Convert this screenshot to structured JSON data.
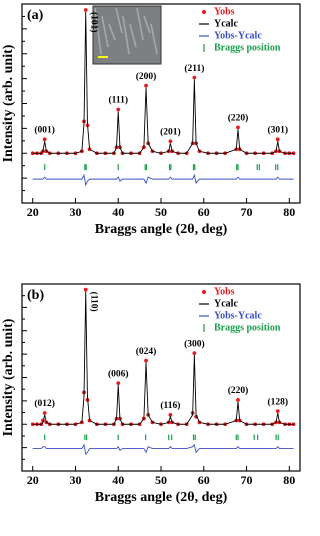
{
  "chart_data": [
    {
      "type": "line",
      "panel": "(a)",
      "xlabel": "Braggs angle (2θ, deg)",
      "ylabel": "Intensity (arb. unit)",
      "xlim": [
        17.5,
        82.5
      ],
      "xticks": [
        20,
        30,
        40,
        50,
        60,
        70,
        80
      ],
      "ylim": [
        0,
        100
      ],
      "x": [
        20,
        21,
        22,
        22.4,
        22.8,
        23.2,
        24,
        26,
        28,
        30,
        31.5,
        32,
        32.4,
        32.8,
        33.3,
        35,
        37,
        39,
        39.6,
        40,
        40.4,
        41,
        43,
        45,
        46,
        46.5,
        47,
        48,
        50,
        51.8,
        52.2,
        52.6,
        54,
        56,
        57.4,
        57.8,
        58.2,
        59,
        61,
        63,
        65,
        67.6,
        68,
        68.4,
        70,
        72,
        74,
        76,
        76.9,
        77.3,
        77.7,
        79,
        80,
        81
      ],
      "series": [
        {
          "name": "Yobs",
          "color": "#e8191f",
          "style": "markers",
          "values": [
            25,
            25,
            25,
            26,
            32,
            26,
            25,
            25,
            25,
            25,
            26,
            41,
            97,
            39,
            27,
            25,
            25,
            25,
            28,
            47,
            28,
            25,
            25,
            25,
            28,
            59,
            30,
            26,
            25,
            26,
            31,
            26,
            25,
            25,
            30,
            63,
            30,
            26,
            25,
            25,
            25,
            27,
            38,
            27,
            25,
            25,
            25,
            25,
            26,
            32,
            26,
            25,
            25,
            25
          ]
        },
        {
          "name": "Ycalc",
          "color": "#000000",
          "style": "line",
          "values": [
            25,
            25,
            25,
            26,
            31,
            26,
            25,
            25,
            25,
            25,
            26,
            40,
            96,
            40,
            27,
            25,
            25,
            25,
            28,
            46,
            28,
            25,
            25,
            25,
            28,
            58,
            30,
            26,
            25,
            26,
            30,
            26,
            25,
            25,
            30,
            62,
            30,
            26,
            25,
            25,
            25,
            27,
            37,
            27,
            25,
            25,
            25,
            25,
            26,
            31,
            26,
            25,
            25,
            25
          ]
        },
        {
          "name": "Yobs-Ycalc",
          "color": "#3a4fc4",
          "style": "line",
          "values": [
            12,
            12,
            12,
            12,
            13,
            12,
            12,
            12,
            12,
            12,
            12,
            14,
            9,
            11,
            12,
            12,
            12,
            12,
            12,
            13,
            11,
            12,
            12,
            12,
            12,
            10,
            13,
            12,
            12,
            12,
            13,
            12,
            12,
            12,
            12,
            14,
            10,
            12,
            12,
            12,
            12,
            12,
            13,
            12,
            12,
            12,
            12,
            12,
            12,
            13,
            12,
            12,
            12,
            12
          ]
        },
        {
          "name": "Braggs position",
          "color": "#1aa04a",
          "style": "bragg",
          "positions": [
            22.8,
            32.2,
            32.5,
            40,
            46.3,
            46.6,
            52,
            52.3,
            57.6,
            57.9,
            67.7,
            68,
            72.5,
            73,
            76.8,
            77.3
          ]
        }
      ],
      "annotations": [
        {
          "text": "(001)",
          "x": 22.8
        },
        {
          "text": "(101)",
          "x": 32.4
        },
        {
          "text": "(111)",
          "x": 40
        },
        {
          "text": "(200)",
          "x": 46.5
        },
        {
          "text": "(201)",
          "x": 52.2
        },
        {
          "text": "(211)",
          "x": 57.8
        },
        {
          "text": "(220)",
          "x": 68
        },
        {
          "text": "(301)",
          "x": 77.3
        }
      ]
    },
    {
      "type": "line",
      "panel": "(b)",
      "xlabel": "Braggs angle (2θ, deg)",
      "ylabel": "Intensity (arb. unit)",
      "xlim": [
        17.5,
        82.5
      ],
      "xticks": [
        20,
        30,
        40,
        50,
        60,
        70,
        80
      ],
      "ylim": [
        0,
        100
      ],
      "x": [
        20,
        21,
        22,
        22.4,
        22.8,
        23.2,
        24,
        26,
        28,
        30,
        31.5,
        32,
        32.4,
        32.8,
        33.3,
        35,
        37,
        39,
        39.6,
        40,
        40.4,
        41,
        43,
        45,
        46,
        46.5,
        47,
        48,
        50,
        51.8,
        52.2,
        52.6,
        54,
        56,
        57.4,
        57.8,
        58.2,
        59,
        61,
        63,
        65,
        67.6,
        68,
        68.4,
        70,
        72,
        74,
        76,
        76.9,
        77.3,
        77.7,
        79,
        80,
        81
      ],
      "series": [
        {
          "name": "Yobs",
          "color": "#e8191f",
          "style": "markers",
          "values": [
            25,
            25,
            25,
            27,
            31,
            26,
            25,
            25,
            25,
            25,
            26,
            42,
            97,
            38,
            27,
            25,
            25,
            25,
            28,
            47,
            28,
            25,
            25,
            25,
            28,
            59,
            30,
            26,
            25,
            26,
            30,
            26,
            25,
            25,
            31,
            63,
            29,
            26,
            25,
            25,
            25,
            27,
            38,
            27,
            25,
            25,
            25,
            25,
            26,
            32,
            26,
            25,
            25,
            25
          ]
        },
        {
          "name": "Ycalc",
          "color": "#000000",
          "style": "line",
          "values": [
            25,
            25,
            25,
            26,
            30,
            26,
            25,
            25,
            25,
            25,
            26,
            40,
            96,
            40,
            27,
            25,
            25,
            25,
            28,
            46,
            28,
            25,
            25,
            25,
            28,
            58,
            30,
            26,
            25,
            26,
            29,
            26,
            25,
            25,
            30,
            62,
            30,
            26,
            25,
            25,
            25,
            27,
            37,
            27,
            25,
            25,
            25,
            25,
            26,
            31,
            26,
            25,
            25,
            25
          ]
        },
        {
          "name": "Yobs-Ycalc",
          "color": "#3a4fc4",
          "style": "line",
          "values": [
            12,
            12,
            12,
            13,
            13,
            12,
            12,
            12,
            12,
            12,
            12,
            14,
            9,
            10,
            12,
            12,
            12,
            12,
            12,
            13,
            11,
            12,
            12,
            12,
            12,
            10,
            13,
            12,
            12,
            12,
            13,
            12,
            12,
            12,
            13,
            14,
            10,
            12,
            12,
            12,
            12,
            12,
            13,
            12,
            12,
            12,
            12,
            12,
            12,
            13,
            12,
            12,
            12,
            12
          ]
        },
        {
          "name": "Braggs position",
          "color": "#1aa04a",
          "style": "bragg",
          "positions": [
            22.8,
            32.2,
            32.6,
            40,
            46.4,
            51.8,
            52.5,
            57.6,
            58,
            67.6,
            68,
            71.8,
            72.6,
            76.9,
            77.4
          ]
        }
      ],
      "annotations": [
        {
          "text": "(012)",
          "x": 22.8
        },
        {
          "text": "(110)",
          "x": 32.4
        },
        {
          "text": "(006)",
          "x": 40
        },
        {
          "text": "(024)",
          "x": 46.5
        },
        {
          "text": "(116)",
          "x": 52.2
        },
        {
          "text": "(300)",
          "x": 57.8
        },
        {
          "text": "(220)",
          "x": 68
        },
        {
          "text": "(128)",
          "x": 77.3
        }
      ]
    }
  ]
}
